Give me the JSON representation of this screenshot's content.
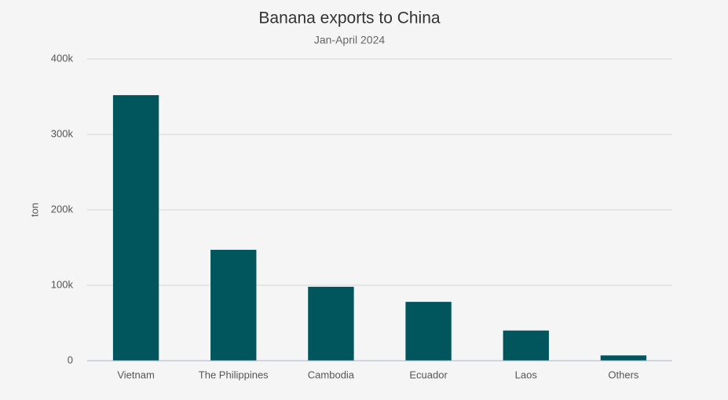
{
  "chart_data": {
    "type": "bar",
    "title": "Banana exports to China",
    "subtitle": "Jan-April 2024",
    "y_label": "ton",
    "categories": [
      "Vietnam",
      "The Philippines",
      "Cambodia",
      "Ecuador",
      "Laos",
      "Others"
    ],
    "values": [
      352000,
      147000,
      98000,
      78000,
      40000,
      7000
    ],
    "color": "#00565c",
    "ylim": [
      0,
      400000
    ],
    "yticks": [
      0,
      {
        "value": 100000,
        "label": "100k"
      },
      {
        "value": 200000,
        "label": "200k"
      },
      {
        "value": 300000,
        "label": "300k"
      },
      {
        "value": 400000,
        "label": "400k"
      }
    ],
    "grid": true
  }
}
